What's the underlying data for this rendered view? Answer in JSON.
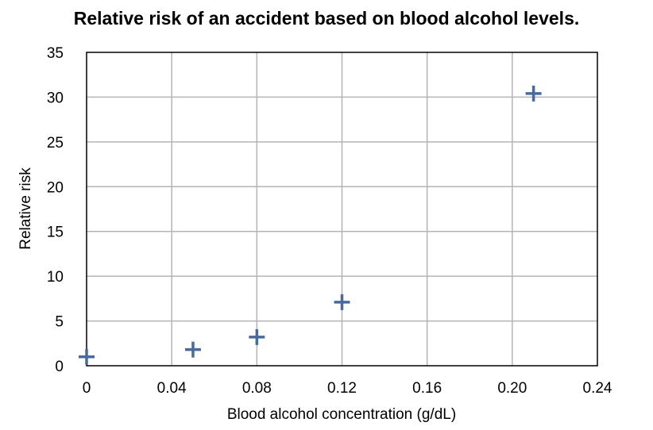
{
  "chart_data": {
    "type": "scatter",
    "title": "Relative risk of an accident based on blood alcohol levels.",
    "xlabel": "Blood alcohol concentration (g/dL)",
    "ylabel": "Relative risk",
    "xlim": [
      0,
      0.24
    ],
    "ylim": [
      0,
      35
    ],
    "x_ticks": [
      0,
      0.04,
      0.08,
      0.12,
      0.16,
      0.2,
      0.24
    ],
    "x_tick_labels": [
      "0",
      "0.04",
      "0.08",
      "0.12",
      "0.16",
      "0.20",
      "0.24"
    ],
    "y_ticks": [
      0,
      5,
      10,
      15,
      20,
      25,
      30,
      35
    ],
    "y_tick_labels": [
      "0",
      "5",
      "10",
      "15",
      "20",
      "25",
      "30",
      "35"
    ],
    "grid": true,
    "marker": "plus",
    "color": "#4a6a9c",
    "series": [
      {
        "x": [
          0,
          0.05,
          0.08,
          0.12,
          0.21
        ],
        "y": [
          1.0,
          1.8,
          3.2,
          7.1,
          30.4
        ]
      }
    ]
  }
}
